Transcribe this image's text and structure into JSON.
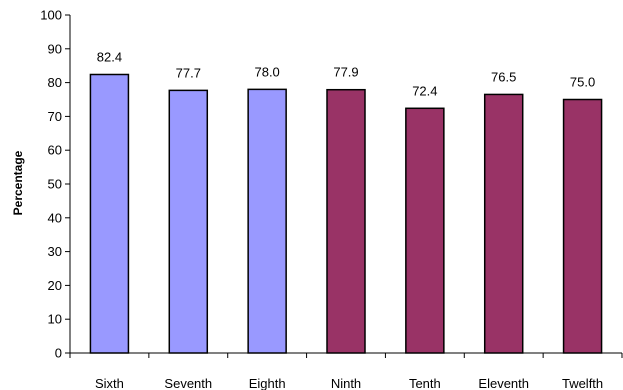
{
  "chart_data": {
    "type": "bar",
    "categories": [
      "Sixth",
      "Seventh",
      "Eighth",
      "Ninth",
      "Tenth",
      "Eleventh",
      "Twelfth"
    ],
    "values": [
      82.4,
      77.7,
      78.0,
      77.9,
      72.4,
      76.5,
      75.0
    ],
    "data_labels": [
      "82.4",
      "77.7",
      "78.0",
      "77.9",
      "72.4",
      "76.5",
      "75.0"
    ],
    "bar_colors": [
      "#9999ff",
      "#9999ff",
      "#9999ff",
      "#993366",
      "#993366",
      "#993366",
      "#993366"
    ],
    "title": "",
    "xlabel": "",
    "ylabel": "Percentage",
    "ylim": [
      0,
      100
    ],
    "yticks": [
      0,
      10,
      20,
      30,
      40,
      50,
      60,
      70,
      80,
      90,
      100
    ],
    "grid": false,
    "legend": "none"
  }
}
